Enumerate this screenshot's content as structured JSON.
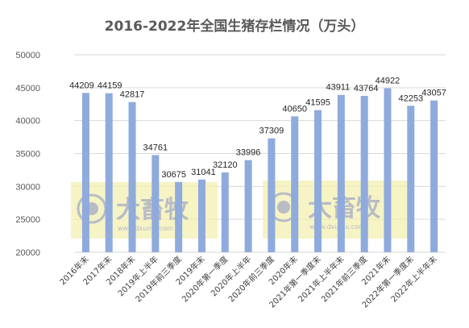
{
  "chart_data": {
    "type": "bar",
    "title": "2016-2022年全国生猪存栏情况（万头）",
    "categories": [
      "2016年末",
      "2017年末",
      "2018年末",
      "2019年上半年",
      "2019年前三季度",
      "2019年末",
      "2020年第一季度",
      "2020年上半年",
      "2020年前三季度",
      "2020年末",
      "2021年第一季度末",
      "2021年上半年末",
      "2021年前三季度",
      "2021年末",
      "2022年第一季度末",
      "2022年上半年末"
    ],
    "values": [
      44209,
      44159,
      42817,
      34761,
      30675,
      31041,
      32120,
      33996,
      37309,
      40650,
      41595,
      43911,
      43764,
      44922,
      42253,
      43057
    ],
    "ylim": [
      20000,
      50000
    ],
    "yticks": [
      20000,
      25000,
      30000,
      35000,
      40000,
      45000,
      50000
    ],
    "ytick_labels": [
      "20000",
      "25000",
      "30000",
      "35000",
      "40000",
      "45000",
      "50000"
    ],
    "grid": true,
    "legend": "none",
    "colors": {
      "bar": "#8faadc",
      "grid": "#d9d9d9",
      "title": "#595959"
    }
  },
  "watermark": {
    "text": "大畜牧",
    "subtext": "www.dxumu.com",
    "colors": {
      "box": "#f3efb2",
      "text": "#b8bcc4"
    }
  }
}
